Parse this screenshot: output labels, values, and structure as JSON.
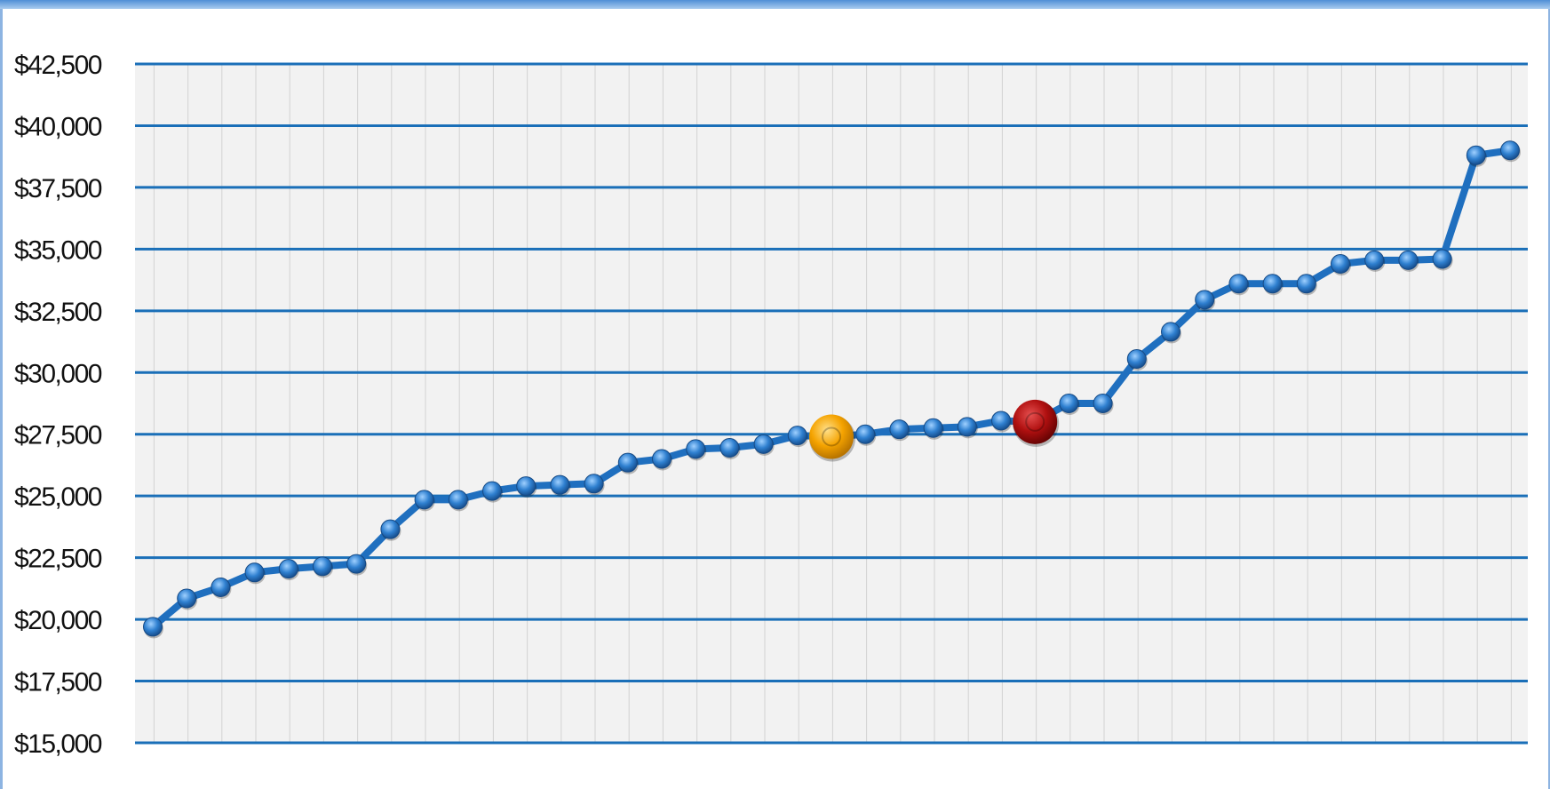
{
  "chart_data": {
    "type": "line",
    "title": "",
    "xlabel": "",
    "ylabel": "",
    "ylim": [
      15000,
      42500
    ],
    "yticks": [
      15000,
      17500,
      20000,
      22500,
      25000,
      27500,
      30000,
      32500,
      35000,
      37500,
      40000,
      42500
    ],
    "ytick_labels": [
      "$15,000",
      "$17,500",
      "$20,000",
      "$22,500",
      "$25,000",
      "$27,500",
      "$30,000",
      "$32,500",
      "$35,000",
      "$37,500",
      "$40,000",
      "$42,500"
    ],
    "category_count": 41,
    "grid": {
      "horizontal": true,
      "vertical": true
    },
    "legend": "none",
    "series": [
      {
        "values": [
          19700,
          20850,
          21300,
          21900,
          22050,
          22150,
          22250,
          23650,
          24850,
          24850,
          25200,
          25400,
          25450,
          25500,
          26350,
          26500,
          26900,
          26950,
          27100,
          27450,
          27400,
          27500,
          27700,
          27750,
          27800,
          28050,
          28000,
          28750,
          28750,
          30550,
          31650,
          32950,
          33600,
          33600,
          33600,
          34400,
          34550,
          34550,
          34600,
          38800,
          39000
        ],
        "color": "#1f6fbf"
      }
    ],
    "highlights": [
      {
        "index": 20,
        "color": "#f5a300"
      },
      {
        "index": 26,
        "color": "#b01010"
      }
    ],
    "colors": {
      "line": "#1f6fbf",
      "gridline": "#1a6fb8",
      "plot_background": "#f2f2f2",
      "marker_fill": "#3a8fe0"
    }
  }
}
